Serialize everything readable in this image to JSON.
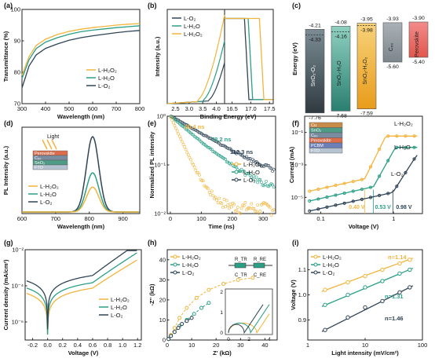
{
  "colors": {
    "h2o2": "#f2b43c",
    "h2o": "#2a9f86",
    "o2": "#2f4456",
    "axis": "#222222"
  },
  "panels": [
    {
      "letter": "(a)",
      "ylabel": "Transmittance (%)",
      "xlabel": "Wavelength (nm)",
      "xticks": [
        "300",
        "400",
        "500",
        "600",
        "700",
        "800"
      ],
      "yticks": [
        "70",
        "80",
        "90",
        "100"
      ]
    },
    {
      "letter": "(b)",
      "ylabel": "Intensity (a.u.)",
      "xlabel": "Binding Energy (eV)",
      "xticks_left": [
        "2.5",
        "3.0",
        "3.5",
        "4.0"
      ],
      "xticks_right": [
        "16.5",
        "17.0",
        "17.5"
      ]
    },
    {
      "letter": "(c)",
      "ylabel": "Energy (eV)"
    },
    {
      "letter": "(d)",
      "ylabel": "PL Intensity (a.u.)",
      "xlabel": "Wavelength (nm)",
      "xticks": [
        "600",
        "700",
        "800",
        "900"
      ]
    },
    {
      "letter": "(e)",
      "ylabel": "Normalized PL intensity",
      "xlabel": "Time (ns)",
      "xticks": [
        "0",
        "100",
        "200",
        "300"
      ],
      "yticks": [
        "10⁻²",
        "10⁻¹",
        "10⁰"
      ]
    },
    {
      "letter": "(f)",
      "ylabel": "Current (mA)",
      "xlabel": "Voltage (V)",
      "xticks": [
        "0.1",
        "1"
      ],
      "yticks": [
        "10⁻⁵",
        "10⁻³",
        "10⁻¹"
      ]
    },
    {
      "letter": "(g)",
      "ylabel": "Current density (mA/cm²)",
      "xlabel": "Voltage (V)",
      "xticks": [
        "-0.2",
        "0.0",
        "0.2",
        "0.4",
        "0.6",
        "0.8",
        "1.0",
        "1.2"
      ],
      "yticks": [
        "10⁻⁶",
        "10⁻⁴",
        "10⁻²"
      ]
    },
    {
      "letter": "(h)",
      "ylabel": "-Z'' (kΩ)",
      "xlabel": "Z' (kΩ)",
      "xticks": [
        "0",
        "10",
        "20",
        "30",
        "40"
      ],
      "yticks": [
        "0",
        "10",
        "20",
        "30",
        "40"
      ]
    },
    {
      "letter": "(i)",
      "ylabel": "Voltage (V)",
      "xlabel": "Light intensity (mV/cm²)",
      "xticks": [
        "1",
        "10",
        "100"
      ],
      "yticks": [
        "0.9",
        "1.0",
        "1.1"
      ]
    }
  ],
  "legend": [
    "L-H₂O₂",
    "L-H₂O",
    "L-O₂"
  ],
  "panel_b_legend": [
    "L-O₂",
    "L-H₂O",
    "L-H₂O₂"
  ],
  "panel_c": {
    "bars": [
      {
        "label": "SnO₂-O₂",
        "top": "-4.21",
        "top2": "-4.33",
        "bottom": "-7.76"
      },
      {
        "label": "SnO₂-H₂O",
        "top": "-4.08",
        "top2": "-4.16",
        "bottom": "-7.68"
      },
      {
        "label": "SnO₂-H₂O₂",
        "top": "-3.95",
        "top2": "-3.98",
        "bottom": "-7.59"
      },
      {
        "label": "C₆₀",
        "top": "-3.93",
        "bottom": "-5.60"
      },
      {
        "label": "Perovskite",
        "top": "-3.90",
        "bottom": "-5.40"
      }
    ]
  },
  "panel_d_inset": {
    "light": "Light",
    "layers": [
      "Perovskite",
      "C₆₀",
      "SnO₂",
      "FTO"
    ]
  },
  "panel_e_labels": [
    "30.4 ns",
    "78.2 ns",
    "112.3 ns"
  ],
  "panel_f_inset": {
    "layers": [
      "Cu",
      "SnO₂",
      "C₆₀",
      "Perovskite",
      "PCBM",
      "FTO"
    ]
  },
  "panel_f_labels": {
    "v1": "0.40 V",
    "v2": "0.53 V",
    "v3": "0.98 V"
  },
  "panel_h_circuit": {
    "r_tr": "R_TR",
    "r_re": "R_RE",
    "c_tr": "C_TR",
    "c_re": "C_RE"
  },
  "panel_i_labels": [
    "n=1.14",
    "n=1.31",
    "n=1.46"
  ],
  "chart_data": [
    {
      "type": "line",
      "panel": "a",
      "xlabel": "Wavelength (nm)",
      "ylabel": "Transmittance (%)",
      "xlim": [
        300,
        800
      ],
      "ylim": [
        70,
        100
      ],
      "x": [
        300,
        330,
        360,
        400,
        450,
        500,
        550,
        600,
        650,
        700,
        750,
        800
      ],
      "series": [
        {
          "name": "L-H₂O₂",
          "values": [
            79,
            85,
            88.5,
            90.5,
            92,
            93,
            93.7,
            94.2,
            94.6,
            95,
            95.3,
            95.5
          ]
        },
        {
          "name": "L-H₂O",
          "values": [
            78,
            84,
            87.5,
            89.6,
            91,
            92.1,
            92.9,
            93.4,
            93.8,
            94.2,
            94.5,
            94.8
          ]
        },
        {
          "name": "L-O₂",
          "values": [
            75,
            82,
            85.5,
            87.6,
            89,
            90.2,
            91,
            91.6,
            92.1,
            92.6,
            93,
            93.3
          ]
        }
      ]
    },
    {
      "type": "line",
      "panel": "b",
      "xlabel": "Binding Energy (eV)",
      "ylabel": "Intensity (a.u.)",
      "series": [
        {
          "name": "L-O₂",
          "cutoff": 16.95
        },
        {
          "name": "L-H₂O",
          "cutoff": 17.05
        },
        {
          "name": "L-H₂O₂",
          "cutoff": 17.35
        }
      ]
    },
    {
      "type": "bar",
      "panel": "c",
      "ylabel": "Energy (eV)",
      "categories": [
        "SnO₂-O₂",
        "SnO₂-H₂O",
        "SnO₂-H₂O₂",
        "C₆₀",
        "Perovskite"
      ],
      "top": [
        -4.21,
        -4.08,
        -3.95,
        -3.93,
        -3.9
      ],
      "bottom": [
        -7.76,
        -7.68,
        -7.59,
        -5.6,
        -5.4
      ]
    },
    {
      "type": "line",
      "panel": "d",
      "xlabel": "Wavelength (nm)",
      "ylabel": "PL Intensity (a.u.)",
      "xlim": [
        600,
        950
      ],
      "peak_nm": 810,
      "series": [
        {
          "name": "L-H₂O₂",
          "peak": 0.33
        },
        {
          "name": "L-H₂O",
          "peak": 0.52
        },
        {
          "name": "L-O₂",
          "peak": 1.0
        }
      ]
    },
    {
      "type": "scatter",
      "panel": "e",
      "xlabel": "Time (ns)",
      "ylabel": "Normalized PL intensity",
      "xlim": [
        0,
        340
      ],
      "ylim": [
        0.01,
        1
      ],
      "yscale": "log",
      "series": [
        {
          "name": "L-H₂O₂",
          "tau_ns": 30.4
        },
        {
          "name": "L-H₂O",
          "tau_ns": 78.2
        },
        {
          "name": "L-O₂",
          "tau_ns": 112.3
        }
      ]
    },
    {
      "type": "line",
      "panel": "f",
      "xlabel": "Voltage (V)",
      "ylabel": "Current (mA)",
      "xscale": "log",
      "yscale": "log",
      "series": [
        {
          "name": "L-H₂O₂",
          "v_tfl": 0.4
        },
        {
          "name": "L-H₂O",
          "v_tfl": 0.53
        },
        {
          "name": "L-O₂",
          "v_tfl": 0.98
        }
      ]
    },
    {
      "type": "line",
      "panel": "g",
      "xlabel": "Voltage (V)",
      "ylabel": "Current density (mA/cm²)",
      "xlim": [
        -0.3,
        1.2
      ],
      "yscale": "log",
      "series": [
        {
          "name": "L-H₂O₂"
        },
        {
          "name": "L-H₂O"
        },
        {
          "name": "L-O₂"
        }
      ]
    },
    {
      "type": "scatter",
      "panel": "h",
      "xlabel": "Z' (kΩ)",
      "ylabel": "-Z'' (kΩ)",
      "xlim": [
        0,
        45
      ],
      "ylim": [
        0,
        45
      ],
      "series": [
        {
          "name": "L-H₂O₂",
          "x": [
            0.5,
            1.5,
            3,
            5,
            8,
            12,
            17,
            23,
            29,
            35
          ],
          "y": [
            0.5,
            2.5,
            6,
            11,
            16,
            21,
            25,
            28,
            30,
            31
          ]
        },
        {
          "name": "L-H₂O",
          "x": [
            0.5,
            1.5,
            3,
            5,
            8,
            11,
            14,
            17
          ],
          "y": [
            0.5,
            2,
            4,
            7,
            10,
            13,
            16,
            18.5
          ]
        },
        {
          "name": "L-O₂",
          "x": [
            0.5,
            1.5,
            3,
            4.5,
            6,
            8,
            10
          ],
          "y": [
            0.5,
            2,
            4,
            6,
            8,
            9.5,
            11
          ]
        }
      ]
    },
    {
      "type": "scatter",
      "panel": "i",
      "xlabel": "Light intensity (mV/cm²)",
      "ylabel": "Voltage (V)",
      "xscale": "log",
      "xlim": [
        1,
        100
      ],
      "ylim": [
        0.82,
        1.18
      ],
      "x": [
        2,
        5,
        10,
        20,
        40,
        60
      ],
      "series": [
        {
          "name": "L-H₂O₂",
          "n": 1.14,
          "values": [
            1.02,
            1.05,
            1.075,
            1.1,
            1.125,
            1.14
          ]
        },
        {
          "name": "L-H₂O",
          "n": 1.31,
          "values": [
            0.96,
            1.0,
            1.03,
            1.055,
            1.085,
            1.1
          ]
        },
        {
          "name": "L-O₂",
          "n": 1.46,
          "values": [
            0.86,
            0.91,
            0.95,
            0.975,
            1.01,
            1.03
          ]
        }
      ]
    }
  ]
}
